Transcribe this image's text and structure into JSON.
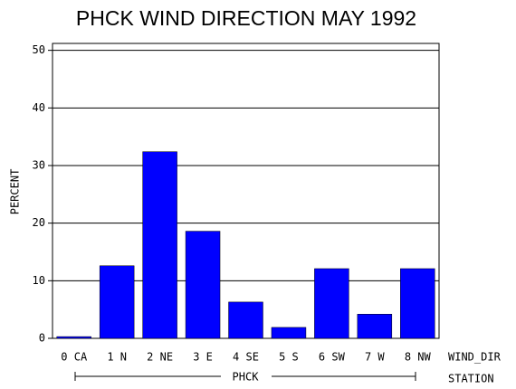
{
  "chart_data": {
    "type": "bar",
    "title": "PHCK WIND DIRECTION MAY 1992",
    "y_label": "PERCENT",
    "x_label": "WIND_DIR",
    "group": "PHCK",
    "group_label": "STATION",
    "categories": [
      "0 CA",
      "1 N",
      "2 NE",
      "3 E",
      "4 SE",
      "5 S",
      "6 SW",
      "7 W",
      "8 NW"
    ],
    "values": [
      0.3,
      12.6,
      32.4,
      18.6,
      6.3,
      1.9,
      12.1,
      4.2,
      12.1
    ],
    "color": "#0000ff",
    "ylim": [
      0,
      51.2
    ],
    "yticks": [
      0,
      10,
      20,
      30,
      40,
      50
    ],
    "grid": true
  }
}
